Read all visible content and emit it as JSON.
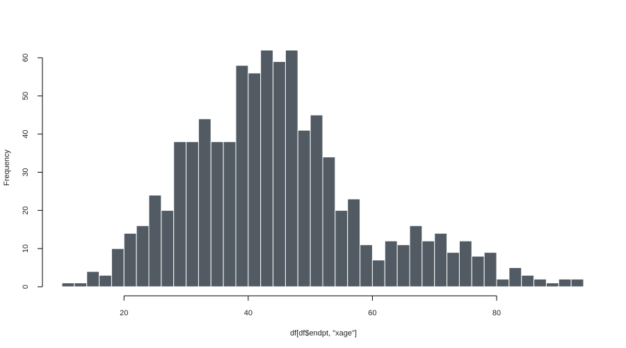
{
  "chart_data": {
    "type": "bar",
    "title": "",
    "xlabel": "df[df$endpt, \"xage\"]",
    "ylabel": "Frequency",
    "bin_width": 2,
    "bin_start": 10,
    "values": [
      1,
      1,
      4,
      3,
      10,
      14,
      16,
      24,
      20,
      38,
      38,
      44,
      38,
      38,
      58,
      56,
      62,
      59,
      62,
      41,
      45,
      34,
      20,
      23,
      11,
      7,
      12,
      11,
      16,
      12,
      14,
      9,
      12,
      8,
      9,
      2,
      5,
      3,
      2,
      1,
      2,
      2
    ],
    "xlim": [
      10,
      94
    ],
    "ylim": [
      0,
      62
    ],
    "x_ticks": [
      "20",
      "40",
      "60",
      "80"
    ],
    "y_ticks": [
      "0",
      "10",
      "20",
      "30",
      "40",
      "50",
      "60"
    ],
    "grid": false,
    "bar_color": "#525b63",
    "bar_edge_color": "#ffffff"
  }
}
